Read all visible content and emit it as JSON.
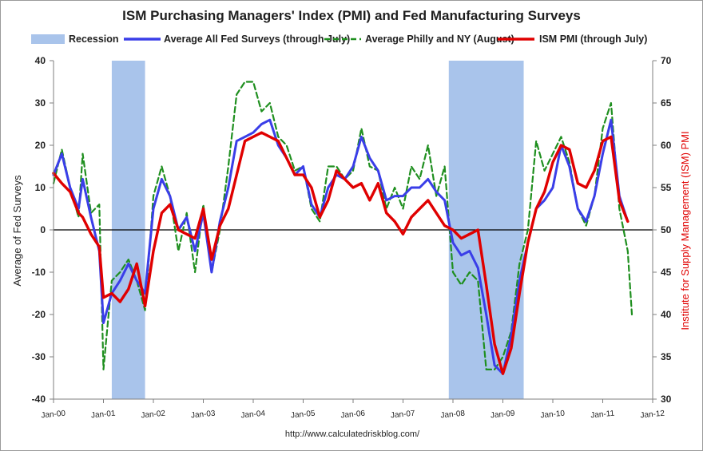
{
  "chart_data": {
    "type": "line",
    "title": "ISM Purchasing Managers' Index (PMI) and Fed Manufacturing Surveys",
    "ylabel_left": "Average of Fed Surveys",
    "ylabel_right": "Institute for Supply Management (ISM) PMI",
    "source": "http://www.calculatedriskblog.com/",
    "y_left_range": [
      -40,
      40
    ],
    "y_left_ticks": [
      -40,
      -30,
      -20,
      -10,
      0,
      10,
      20,
      30,
      40
    ],
    "y_right_range": [
      30,
      70
    ],
    "y_right_ticks": [
      30,
      35,
      40,
      45,
      50,
      55,
      60,
      65,
      70
    ],
    "x_range": [
      "2000-01",
      "2012-01"
    ],
    "x_ticks": [
      "Jan-00",
      "Jan-01",
      "Jan-02",
      "Jan-03",
      "Jan-04",
      "Jan-05",
      "Jan-06",
      "Jan-07",
      "Jan-08",
      "Jan-09",
      "Jan-10",
      "Jan-11",
      "Jan-12"
    ],
    "x_tick_dates": [
      "2000-01",
      "2001-01",
      "2002-01",
      "2003-01",
      "2004-01",
      "2005-01",
      "2006-01",
      "2007-01",
      "2008-01",
      "2009-01",
      "2010-01",
      "2011-01",
      "2012-01"
    ],
    "grid": false,
    "legend_position": "top",
    "recessions": [
      {
        "start": "2001-03",
        "end": "2001-11"
      },
      {
        "start": "2007-12",
        "end": "2009-06"
      }
    ],
    "legend": [
      {
        "label": "Recession",
        "kind": "patch",
        "color": "#a9c4eb"
      },
      {
        "label": "Average All Fed Surveys (through July)",
        "kind": "line",
        "color": "#3a3ee8"
      },
      {
        "label": "Average Philly and NY (August)",
        "kind": "dashed",
        "color": "#1f8f1f"
      },
      {
        "label": "ISM PMI (through July)",
        "kind": "line",
        "color": "#e00000"
      }
    ],
    "series": [
      {
        "name": "Average Philly and NY (August)",
        "axis": "left",
        "color": "#1f8f1f",
        "style": "dashed",
        "points": [
          [
            "2000-01",
            11
          ],
          [
            "2000-03",
            19
          ],
          [
            "2000-05",
            10
          ],
          [
            "2000-07",
            3
          ],
          [
            "2000-08",
            18
          ],
          [
            "2000-10",
            4
          ],
          [
            "2000-12",
            6
          ],
          [
            "2001-01",
            -33
          ],
          [
            "2001-03",
            -12
          ],
          [
            "2001-05",
            -10
          ],
          [
            "2001-07",
            -7
          ],
          [
            "2001-09",
            -12
          ],
          [
            "2001-11",
            -19
          ],
          [
            "2002-01",
            8
          ],
          [
            "2002-03",
            15
          ],
          [
            "2002-05",
            8
          ],
          [
            "2002-07",
            -5
          ],
          [
            "2002-09",
            4
          ],
          [
            "2002-11",
            -10
          ],
          [
            "2003-01",
            6
          ],
          [
            "2003-03",
            -10
          ],
          [
            "2003-05",
            0
          ],
          [
            "2003-07",
            15
          ],
          [
            "2003-09",
            32
          ],
          [
            "2003-11",
            35
          ],
          [
            "2004-01",
            35
          ],
          [
            "2004-03",
            28
          ],
          [
            "2004-05",
            30
          ],
          [
            "2004-07",
            22
          ],
          [
            "2004-09",
            20
          ],
          [
            "2004-11",
            14
          ],
          [
            "2005-01",
            15
          ],
          [
            "2005-03",
            5
          ],
          [
            "2005-05",
            2
          ],
          [
            "2005-07",
            15
          ],
          [
            "2005-09",
            15
          ],
          [
            "2005-11",
            12
          ],
          [
            "2006-01",
            14
          ],
          [
            "2006-03",
            24
          ],
          [
            "2006-05",
            15
          ],
          [
            "2006-07",
            14
          ],
          [
            "2006-09",
            5
          ],
          [
            "2006-11",
            10
          ],
          [
            "2007-01",
            5
          ],
          [
            "2007-03",
            15
          ],
          [
            "2007-05",
            12
          ],
          [
            "2007-07",
            20
          ],
          [
            "2007-09",
            8
          ],
          [
            "2007-11",
            15
          ],
          [
            "2008-01",
            -10
          ],
          [
            "2008-03",
            -13
          ],
          [
            "2008-05",
            -10
          ],
          [
            "2008-07",
            -12
          ],
          [
            "2008-09",
            -33
          ],
          [
            "2008-11",
            -33
          ],
          [
            "2009-01",
            -30
          ],
          [
            "2009-03",
            -24
          ],
          [
            "2009-05",
            -8
          ],
          [
            "2009-07",
            0
          ],
          [
            "2009-09",
            21
          ],
          [
            "2009-11",
            14
          ],
          [
            "2010-01",
            18
          ],
          [
            "2010-03",
            22
          ],
          [
            "2010-05",
            16
          ],
          [
            "2010-07",
            5
          ],
          [
            "2010-09",
            1
          ],
          [
            "2010-11",
            8
          ],
          [
            "2011-01",
            24
          ],
          [
            "2011-03",
            30
          ],
          [
            "2011-05",
            5
          ],
          [
            "2011-07",
            -5
          ],
          [
            "2011-08",
            -20
          ]
        ]
      },
      {
        "name": "Average All Fed Surveys (through July)",
        "axis": "left",
        "color": "#3a3ee8",
        "style": "solid",
        "points": [
          [
            "2000-01",
            13
          ],
          [
            "2000-03",
            18
          ],
          [
            "2000-05",
            10
          ],
          [
            "2000-07",
            5
          ],
          [
            "2000-08",
            12
          ],
          [
            "2000-10",
            3
          ],
          [
            "2000-12",
            -5
          ],
          [
            "2001-01",
            -22
          ],
          [
            "2001-03",
            -15
          ],
          [
            "2001-05",
            -12
          ],
          [
            "2001-07",
            -8
          ],
          [
            "2001-09",
            -12
          ],
          [
            "2001-11",
            -15
          ],
          [
            "2002-01",
            5
          ],
          [
            "2002-03",
            12
          ],
          [
            "2002-05",
            8
          ],
          [
            "2002-07",
            0
          ],
          [
            "2002-09",
            3
          ],
          [
            "2002-11",
            -5
          ],
          [
            "2003-01",
            4
          ],
          [
            "2003-03",
            -10
          ],
          [
            "2003-05",
            2
          ],
          [
            "2003-07",
            10
          ],
          [
            "2003-09",
            21
          ],
          [
            "2003-11",
            22
          ],
          [
            "2004-01",
            23
          ],
          [
            "2004-03",
            25
          ],
          [
            "2004-05",
            26
          ],
          [
            "2004-07",
            20
          ],
          [
            "2004-09",
            17
          ],
          [
            "2004-11",
            13
          ],
          [
            "2005-01",
            15
          ],
          [
            "2005-03",
            6
          ],
          [
            "2005-05",
            3
          ],
          [
            "2005-07",
            10
          ],
          [
            "2005-09",
            13
          ],
          [
            "2005-11",
            12
          ],
          [
            "2006-01",
            15
          ],
          [
            "2006-03",
            22
          ],
          [
            "2006-05",
            17
          ],
          [
            "2006-07",
            14
          ],
          [
            "2006-09",
            7
          ],
          [
            "2006-11",
            8
          ],
          [
            "2007-01",
            8
          ],
          [
            "2007-03",
            10
          ],
          [
            "2007-05",
            10
          ],
          [
            "2007-07",
            12
          ],
          [
            "2007-09",
            9
          ],
          [
            "2007-11",
            7
          ],
          [
            "2008-01",
            -3
          ],
          [
            "2008-03",
            -6
          ],
          [
            "2008-05",
            -5
          ],
          [
            "2008-07",
            -9
          ],
          [
            "2008-09",
            -20
          ],
          [
            "2008-11",
            -32
          ],
          [
            "2009-01",
            -34
          ],
          [
            "2009-03",
            -25
          ],
          [
            "2009-05",
            -12
          ],
          [
            "2009-07",
            -3
          ],
          [
            "2009-09",
            5
          ],
          [
            "2009-11",
            7
          ],
          [
            "2010-01",
            10
          ],
          [
            "2010-03",
            20
          ],
          [
            "2010-05",
            15
          ],
          [
            "2010-07",
            5
          ],
          [
            "2010-09",
            2
          ],
          [
            "2010-11",
            8
          ],
          [
            "2011-01",
            18
          ],
          [
            "2011-03",
            26
          ],
          [
            "2011-05",
            8
          ],
          [
            "2011-07",
            2
          ]
        ]
      },
      {
        "name": "ISM PMI (through July)",
        "axis": "right",
        "color": "#e00000",
        "style": "solid",
        "points": [
          [
            "2000-01",
            56.7
          ],
          [
            "2000-03",
            55.5
          ],
          [
            "2000-05",
            54.5
          ],
          [
            "2000-07",
            52.0
          ],
          [
            "2000-08",
            51.5
          ],
          [
            "2000-10",
            49.5
          ],
          [
            "2000-12",
            48.0
          ],
          [
            "2001-01",
            42.0
          ],
          [
            "2001-03",
            42.5
          ],
          [
            "2001-05",
            41.5
          ],
          [
            "2001-07",
            43.0
          ],
          [
            "2001-09",
            46.0
          ],
          [
            "2001-11",
            41.0
          ],
          [
            "2002-01",
            47.5
          ],
          [
            "2002-03",
            52.0
          ],
          [
            "2002-05",
            53.0
          ],
          [
            "2002-07",
            50.0
          ],
          [
            "2002-09",
            49.5
          ],
          [
            "2002-11",
            49.0
          ],
          [
            "2003-01",
            52.5
          ],
          [
            "2003-03",
            46.5
          ],
          [
            "2003-05",
            50.5
          ],
          [
            "2003-07",
            52.5
          ],
          [
            "2003-09",
            56.5
          ],
          [
            "2003-11",
            60.5
          ],
          [
            "2004-01",
            61.0
          ],
          [
            "2004-03",
            61.5
          ],
          [
            "2004-05",
            61.0
          ],
          [
            "2004-07",
            60.5
          ],
          [
            "2004-09",
            58.5
          ],
          [
            "2004-11",
            56.5
          ],
          [
            "2005-01",
            56.5
          ],
          [
            "2005-03",
            55.0
          ],
          [
            "2005-05",
            51.5
          ],
          [
            "2005-07",
            53.5
          ],
          [
            "2005-09",
            57.0
          ],
          [
            "2005-11",
            56.0
          ],
          [
            "2006-01",
            55.0
          ],
          [
            "2006-03",
            55.5
          ],
          [
            "2006-05",
            53.5
          ],
          [
            "2006-07",
            55.5
          ],
          [
            "2006-09",
            52.0
          ],
          [
            "2006-11",
            51.0
          ],
          [
            "2007-01",
            49.5
          ],
          [
            "2007-03",
            51.5
          ],
          [
            "2007-05",
            52.5
          ],
          [
            "2007-07",
            53.5
          ],
          [
            "2007-09",
            52.0
          ],
          [
            "2007-11",
            50.5
          ],
          [
            "2008-01",
            50.0
          ],
          [
            "2008-03",
            49.0
          ],
          [
            "2008-05",
            49.5
          ],
          [
            "2008-07",
            50.0
          ],
          [
            "2008-09",
            43.5
          ],
          [
            "2008-11",
            36.5
          ],
          [
            "2009-01",
            33.0
          ],
          [
            "2009-03",
            36.0
          ],
          [
            "2009-05",
            42.5
          ],
          [
            "2009-07",
            48.5
          ],
          [
            "2009-09",
            52.5
          ],
          [
            "2009-11",
            54.5
          ],
          [
            "2010-01",
            58.0
          ],
          [
            "2010-03",
            60.0
          ],
          [
            "2010-05",
            59.5
          ],
          [
            "2010-07",
            55.5
          ],
          [
            "2010-09",
            55.0
          ],
          [
            "2010-11",
            57.0
          ],
          [
            "2011-01",
            60.5
          ],
          [
            "2011-03",
            61.0
          ],
          [
            "2011-05",
            53.5
          ],
          [
            "2011-07",
            51.0
          ]
        ]
      }
    ]
  }
}
